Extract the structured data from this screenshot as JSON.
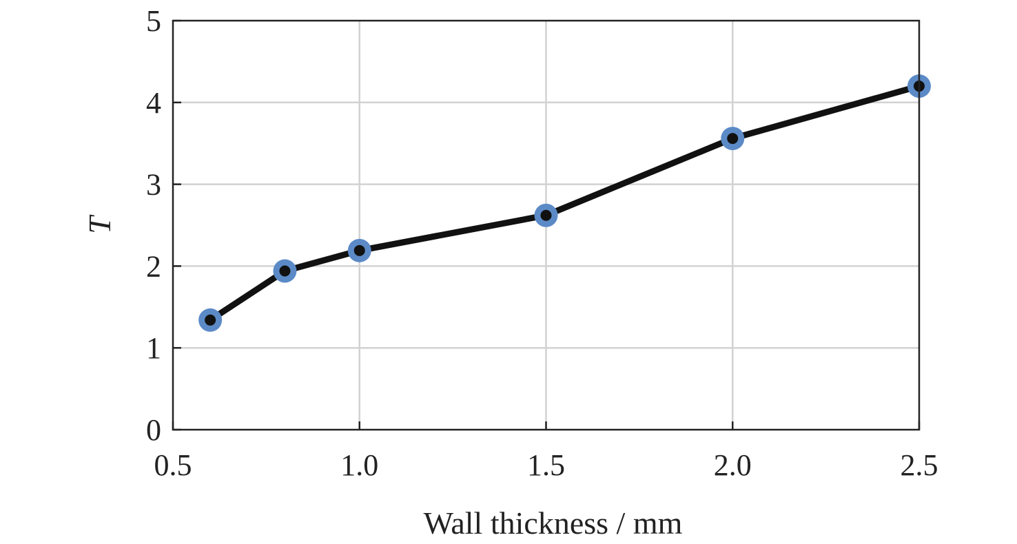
{
  "chart_data": {
    "type": "line",
    "title": "",
    "xlabel": "Wall thickness / mm",
    "ylabel": "T",
    "xlim": [
      0.5,
      2.5
    ],
    "ylim": [
      0,
      5
    ],
    "x_ticks": [
      0.5,
      1.0,
      1.5,
      2.0,
      2.5
    ],
    "x_tick_labels": [
      "0.5",
      "1.0",
      "1.5",
      "2.0",
      "2.5"
    ],
    "y_ticks": [
      0,
      1,
      2,
      3,
      4,
      5
    ],
    "y_tick_labels": [
      "0",
      "1",
      "2",
      "3",
      "4",
      "5"
    ],
    "grid": true,
    "legend": "none",
    "series": [
      {
        "x": [
          0.6,
          0.8,
          1.0,
          1.5,
          2.0,
          2.5
        ],
        "y": [
          1.34,
          1.94,
          2.19,
          2.62,
          3.56,
          4.2
        ]
      }
    ],
    "colors": {
      "line": "#111111",
      "marker_outer": "#5b8ac7",
      "marker_inner": "#111111",
      "grid": "#d2d2d2",
      "axis": "#222222"
    }
  }
}
